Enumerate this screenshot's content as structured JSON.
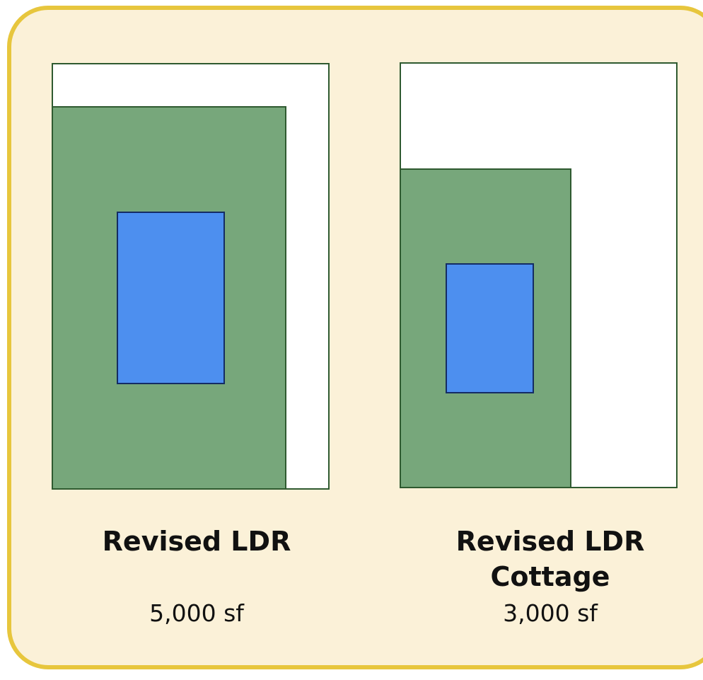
{
  "lots": [
    {
      "name_line1": "Revised LDR",
      "name_line2": "",
      "area": "5,000 sf"
    },
    {
      "name_line1": "Revised LDR",
      "name_line2": "Cottage",
      "area": "3,000 sf"
    }
  ],
  "colors": {
    "panel_background": "#fbf1d8",
    "panel_border": "#e7c63d",
    "lot_background": "#ffffff",
    "lot_outline": "#2f5a30",
    "buildable_area": "#77a77b",
    "building_footprint": "#4d8fef"
  }
}
